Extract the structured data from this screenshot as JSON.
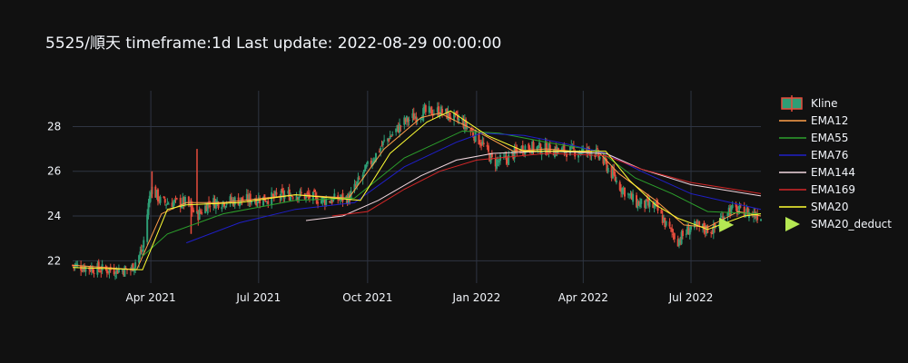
{
  "chart_data": {
    "type": "line",
    "title": "5525/順天 timeframe:1d Last update: 2022-08-29 00:00:00",
    "xlabel": "",
    "ylabel": "",
    "x_range": [
      "2021-01-25",
      "2022-08-29"
    ],
    "ylim": [
      21,
      29.6
    ],
    "grid": true,
    "legend_position": "right",
    "x_ticks": [
      {
        "date": "2021-04-01",
        "label": "Apr 2021"
      },
      {
        "date": "2021-07-01",
        "label": "Jul 2021"
      },
      {
        "date": "2021-10-01",
        "label": "Oct 2021"
      },
      {
        "date": "2022-01-01",
        "label": "Jan 2022"
      },
      {
        "date": "2022-04-01",
        "label": "Apr 2022"
      },
      {
        "date": "2022-07-01",
        "label": "Jul 2022"
      }
    ],
    "y_ticks": [
      22,
      24,
      26,
      28
    ],
    "colors": {
      "up": "#2e9e75",
      "down": "#e74c3c",
      "grid": "#2f3542"
    },
    "kline_anchors": [
      [
        "2021-01-25",
        21.8
      ],
      [
        "2021-02-20",
        21.6
      ],
      [
        "2021-03-15",
        21.6
      ],
      [
        "2021-03-25",
        22.5
      ],
      [
        "2021-04-01",
        25.3
      ],
      [
        "2021-04-10",
        24.6
      ],
      [
        "2021-05-01",
        24.6
      ],
      [
        "2021-05-10",
        24.0
      ],
      [
        "2021-05-20",
        24.6
      ],
      [
        "2021-06-15",
        24.7
      ],
      [
        "2021-07-10",
        24.8
      ],
      [
        "2021-08-01",
        25.0
      ],
      [
        "2021-08-25",
        24.7
      ],
      [
        "2021-09-15",
        24.8
      ],
      [
        "2021-10-01",
        26.2
      ],
      [
        "2021-10-15",
        27.3
      ],
      [
        "2021-11-01",
        28.2
      ],
      [
        "2021-11-15",
        28.6
      ],
      [
        "2021-12-01",
        28.7
      ],
      [
        "2021-12-20",
        28.2
      ],
      [
        "2022-01-05",
        27.3
      ],
      [
        "2022-01-15",
        26.4
      ],
      [
        "2022-01-25",
        26.5
      ],
      [
        "2022-02-10",
        27.1
      ],
      [
        "2022-03-01",
        27.0
      ],
      [
        "2022-03-20",
        26.9
      ],
      [
        "2022-04-10",
        26.9
      ],
      [
        "2022-04-20",
        26.3
      ],
      [
        "2022-05-01",
        25.4
      ],
      [
        "2022-05-15",
        24.6
      ],
      [
        "2022-06-01",
        24.4
      ],
      [
        "2022-06-10",
        23.6
      ],
      [
        "2022-06-20",
        22.9
      ],
      [
        "2022-07-01",
        23.5
      ],
      [
        "2022-07-20",
        23.4
      ],
      [
        "2022-08-01",
        24.3
      ],
      [
        "2022-08-15",
        24.2
      ],
      [
        "2022-08-29",
        24.0
      ]
    ],
    "series": [
      {
        "name": "EMA12",
        "color": "#ff9f4a",
        "values": [
          [
            "2021-01-25",
            21.8
          ],
          [
            "2021-03-20",
            21.6
          ],
          [
            "2021-04-10",
            24.1
          ],
          [
            "2021-05-01",
            24.6
          ],
          [
            "2021-06-01",
            24.6
          ],
          [
            "2021-08-01",
            24.95
          ],
          [
            "2021-09-15",
            24.8
          ],
          [
            "2021-10-15",
            27.0
          ],
          [
            "2021-11-15",
            28.4
          ],
          [
            "2021-12-01",
            28.6
          ],
          [
            "2022-01-01",
            27.8
          ],
          [
            "2022-02-01",
            26.9
          ],
          [
            "2022-03-01",
            27.0
          ],
          [
            "2022-04-15",
            26.8
          ],
          [
            "2022-05-01",
            25.9
          ],
          [
            "2022-06-01",
            24.7
          ],
          [
            "2022-06-25",
            23.6
          ],
          [
            "2022-07-15",
            23.5
          ],
          [
            "2022-08-10",
            24.2
          ],
          [
            "2022-08-29",
            24.0
          ]
        ]
      },
      {
        "name": "EMA55",
        "color": "#2ca02c",
        "values": [
          [
            "2021-03-25",
            22.2
          ],
          [
            "2021-04-15",
            23.2
          ],
          [
            "2021-06-01",
            24.1
          ],
          [
            "2021-08-01",
            24.7
          ],
          [
            "2021-09-20",
            24.8
          ],
          [
            "2021-11-01",
            26.6
          ],
          [
            "2021-12-20",
            27.8
          ],
          [
            "2022-01-20",
            27.7
          ],
          [
            "2022-03-01",
            27.3
          ],
          [
            "2022-04-15",
            26.9
          ],
          [
            "2022-05-15",
            25.7
          ],
          [
            "2022-06-15",
            25.0
          ],
          [
            "2022-07-15",
            24.2
          ],
          [
            "2022-08-29",
            24.1
          ]
        ]
      },
      {
        "name": "EMA76",
        "color": "#1f1fc8",
        "values": [
          [
            "2021-05-01",
            22.8
          ],
          [
            "2021-06-15",
            23.7
          ],
          [
            "2021-08-01",
            24.3
          ],
          [
            "2021-09-20",
            24.6
          ],
          [
            "2021-11-01",
            26.2
          ],
          [
            "2021-12-15",
            27.3
          ],
          [
            "2022-01-05",
            27.7
          ],
          [
            "2022-02-10",
            27.6
          ],
          [
            "2022-03-20",
            27.2
          ],
          [
            "2022-04-20",
            26.8
          ],
          [
            "2022-05-20",
            26.0
          ],
          [
            "2022-07-01",
            25.0
          ],
          [
            "2022-08-29",
            24.3
          ]
        ]
      },
      {
        "name": "EMA144",
        "color": "#f2d7df",
        "values": [
          [
            "2021-08-10",
            23.8
          ],
          [
            "2021-09-10",
            24.0
          ],
          [
            "2021-10-10",
            24.7
          ],
          [
            "2021-11-15",
            25.8
          ],
          [
            "2021-12-15",
            26.5
          ],
          [
            "2022-01-15",
            26.8
          ],
          [
            "2022-03-01",
            26.9
          ],
          [
            "2022-04-20",
            26.8
          ],
          [
            "2022-05-20",
            26.1
          ],
          [
            "2022-07-01",
            25.4
          ],
          [
            "2022-08-29",
            24.9
          ]
        ]
      },
      {
        "name": "EMA169",
        "color": "#d62728",
        "values": [
          [
            "2021-09-01",
            24.0
          ],
          [
            "2021-10-01",
            24.2
          ],
          [
            "2021-11-01",
            25.2
          ],
          [
            "2021-12-01",
            26.0
          ],
          [
            "2022-01-01",
            26.5
          ],
          [
            "2022-03-01",
            26.8
          ],
          [
            "2022-04-20",
            26.7
          ],
          [
            "2022-05-20",
            26.1
          ],
          [
            "2022-07-01",
            25.5
          ],
          [
            "2022-08-29",
            25.0
          ]
        ]
      },
      {
        "name": "SMA20",
        "color": "#ffff33",
        "values": [
          [
            "2021-01-25",
            21.7
          ],
          [
            "2021-03-25",
            21.6
          ],
          [
            "2021-04-15",
            24.3
          ],
          [
            "2021-05-01",
            24.5
          ],
          [
            "2021-06-15",
            24.6
          ],
          [
            "2021-08-01",
            24.95
          ],
          [
            "2021-09-25",
            24.7
          ],
          [
            "2021-10-20",
            26.8
          ],
          [
            "2021-11-20",
            28.2
          ],
          [
            "2021-12-10",
            28.7
          ],
          [
            "2022-01-10",
            27.6
          ],
          [
            "2022-02-10",
            26.9
          ],
          [
            "2022-03-15",
            26.9
          ],
          [
            "2022-04-20",
            26.9
          ],
          [
            "2022-05-10",
            25.6
          ],
          [
            "2022-06-01",
            24.5
          ],
          [
            "2022-06-20",
            23.9
          ],
          [
            "2022-07-15",
            23.4
          ],
          [
            "2022-08-15",
            24.0
          ],
          [
            "2022-08-29",
            24.1
          ]
        ]
      },
      {
        "name": "SMA20_deduct",
        "color": "#b5e853",
        "marker": "triangle-right",
        "values": [
          [
            "2022-07-31",
            23.6
          ]
        ]
      }
    ],
    "legend": [
      {
        "name": "Kline",
        "symbol": "box",
        "color": "#e74c3c"
      },
      {
        "name": "EMA12",
        "symbol": "line",
        "color": "#ff9f4a"
      },
      {
        "name": "EMA55",
        "symbol": "line",
        "color": "#2ca02c"
      },
      {
        "name": "EMA76",
        "symbol": "line",
        "color": "#1f1fc8"
      },
      {
        "name": "EMA144",
        "symbol": "line",
        "color": "#f2d7df"
      },
      {
        "name": "EMA169",
        "symbol": "line",
        "color": "#d62728"
      },
      {
        "name": "SMA20",
        "symbol": "line",
        "color": "#ffff33"
      },
      {
        "name": "SMA20_deduct",
        "symbol": "triangle",
        "color": "#b5e853"
      }
    ]
  }
}
